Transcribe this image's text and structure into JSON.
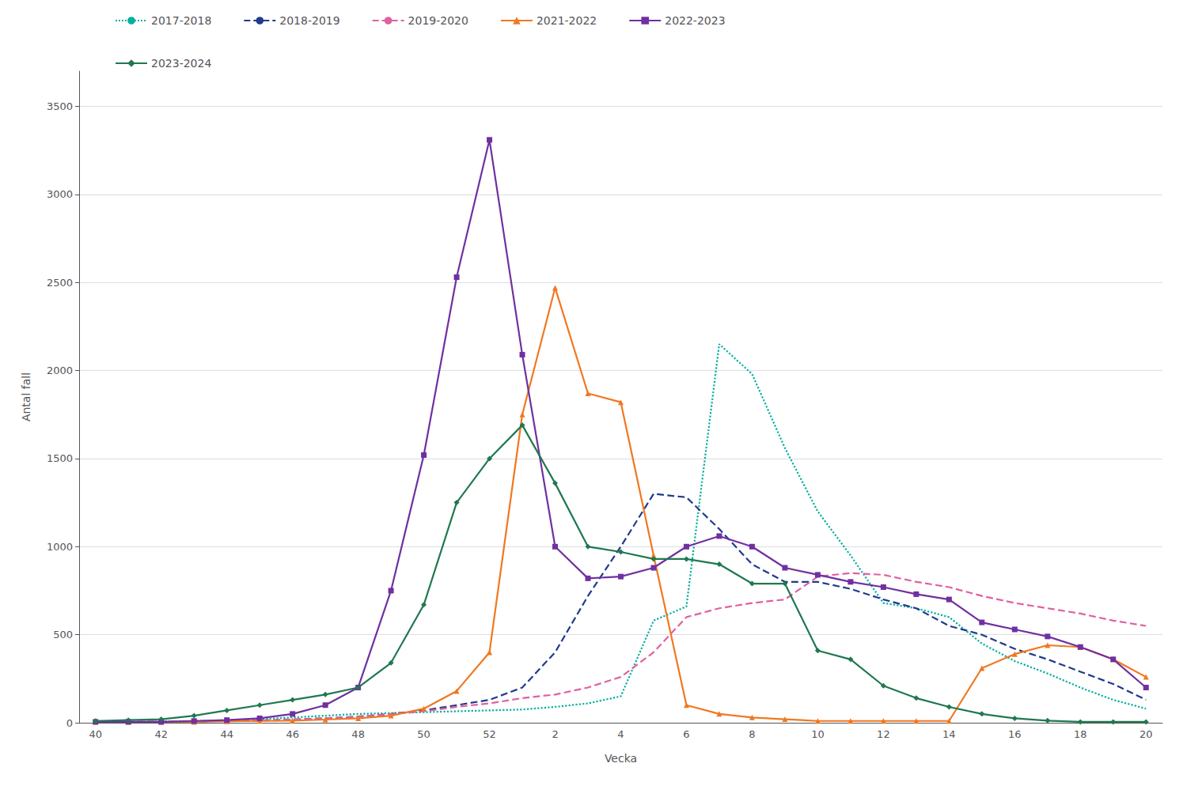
{
  "chart_data": {
    "type": "line",
    "xlabel": "Vecka",
    "ylabel": "Antal fall",
    "categories": [
      "40",
      null,
      "42",
      null,
      "44",
      null,
      "46",
      null,
      "48",
      null,
      "50",
      null,
      "52",
      null,
      "2",
      null,
      "4",
      null,
      "6",
      null,
      "8",
      null,
      "10",
      null,
      "12",
      null,
      "14",
      null,
      "16",
      null,
      "18",
      null,
      "20"
    ],
    "ylim": [
      0,
      3700
    ],
    "yticks": [
      0,
      500,
      1000,
      1500,
      2000,
      2500,
      3000,
      3500
    ],
    "grid": true,
    "legend": "upper left",
    "series": [
      {
        "name": "2017-2018",
        "color": "#00B0A0",
        "line_style": "dotted",
        "marker": "none",
        "values": [
          5,
          5,
          8,
          10,
          15,
          20,
          30,
          40,
          50,
          55,
          60,
          65,
          70,
          75,
          90,
          110,
          150,
          580,
          660,
          2150,
          1980,
          1560,
          1200,
          950,
          680,
          650,
          600,
          450,
          350,
          280,
          200,
          130,
          80
        ]
      },
      {
        "name": "2018-2019",
        "color": "#1F3B8C",
        "line_style": "dashed",
        "marker": "none",
        "values": [
          5,
          5,
          5,
          8,
          10,
          12,
          18,
          25,
          35,
          50,
          70,
          100,
          130,
          200,
          400,
          720,
          1000,
          1300,
          1280,
          1100,
          900,
          800,
          800,
          760,
          700,
          650,
          550,
          500,
          420,
          360,
          290,
          220,
          130
        ]
      },
      {
        "name": "2019-2020",
        "color": "#E060A0",
        "line_style": "dashed",
        "marker": "none",
        "values": [
          5,
          5,
          5,
          8,
          10,
          12,
          18,
          25,
          35,
          50,
          65,
          90,
          110,
          140,
          160,
          200,
          260,
          400,
          600,
          650,
          680,
          700,
          830,
          850,
          840,
          800,
          770,
          720,
          680,
          650,
          620,
          580,
          550
        ]
      },
      {
        "name": "2021-2022",
        "color": "#F07820",
        "line_style": "solid",
        "marker": "triangle",
        "values": [
          5,
          5,
          5,
          5,
          8,
          10,
          12,
          18,
          25,
          40,
          80,
          180,
          400,
          1750,
          2470,
          1870,
          1820,
          950,
          100,
          50,
          30,
          20,
          10,
          10,
          10,
          10,
          10,
          310,
          390,
          440,
          430,
          360,
          260
        ]
      },
      {
        "name": "2022-2023",
        "color": "#7030A0",
        "line_style": "solid",
        "marker": "square",
        "values": [
          5,
          5,
          5,
          10,
          15,
          25,
          50,
          100,
          200,
          750,
          1520,
          2530,
          3310,
          2090,
          1000,
          820,
          830,
          880,
          1000,
          1060,
          1000,
          880,
          840,
          800,
          770,
          730,
          700,
          570,
          530,
          490,
          430,
          360,
          200
        ]
      },
      {
        "name": "2023-2024",
        "color": "#207850",
        "line_style": "solid",
        "marker": "diamond",
        "values": [
          10,
          15,
          20,
          40,
          70,
          100,
          130,
          160,
          200,
          340,
          670,
          1250,
          1500,
          1690,
          1360,
          1000,
          970,
          930,
          930,
          900,
          790,
          790,
          410,
          360,
          210,
          140,
          90,
          50,
          25,
          12,
          5,
          5,
          5
        ]
      }
    ]
  }
}
